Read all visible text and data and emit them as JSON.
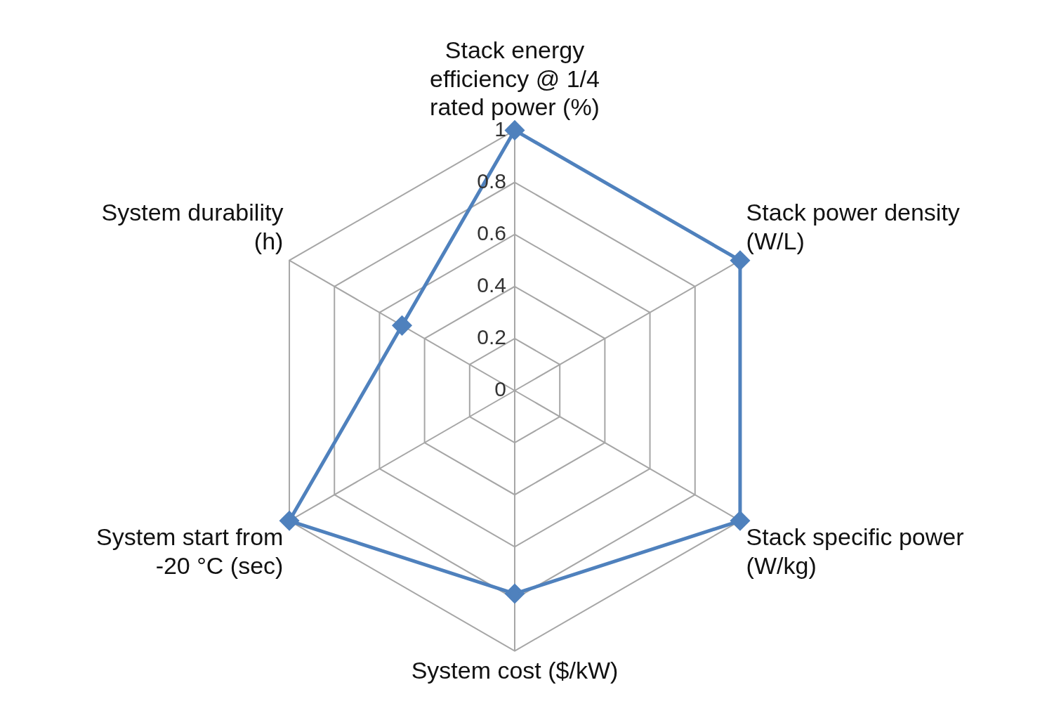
{
  "chart_data": {
    "type": "radar",
    "categories": [
      "Stack energy efficiency @ 1/4 rated power (%)",
      "Stack power density (W/L)",
      "Stack specific power (W/kg)",
      "System cost ($/kW)",
      "System start from -20 °C (sec)",
      "System durability (h)"
    ],
    "series": [
      {
        "color": "#4f81bd",
        "values": [
          1,
          1,
          1,
          0.78,
          1,
          0.5
        ]
      }
    ],
    "ylim": [
      0,
      1
    ],
    "yticks": [
      0,
      0.2,
      0.4,
      0.6,
      0.8,
      1
    ],
    "grid": true,
    "legend": false,
    "marker": "diamond",
    "line_style": "solid"
  }
}
